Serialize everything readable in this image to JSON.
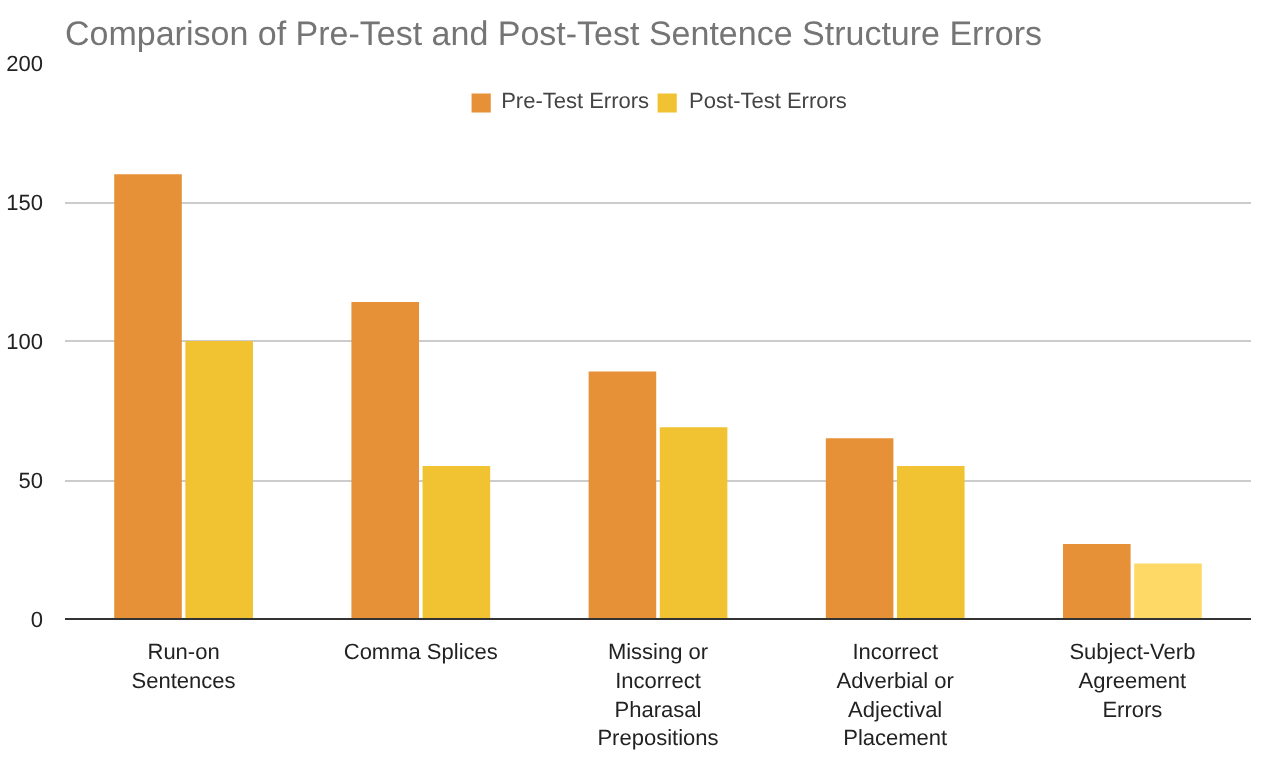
{
  "chart_data": {
    "type": "bar",
    "title": "Comparison of Pre-Test and Post-Test Sentence Structure Errors",
    "categories": [
      "Run-on Sentences",
      "Comma Splices",
      "Missing or Incorrect Pharasal Prepositions",
      "Incorrect Adverbial or Adjectival Placement",
      "Subject-Verb Agreement Errors"
    ],
    "series": [
      {
        "name": "Pre-Test Errors",
        "color": "#e69138",
        "values": [
          160,
          114,
          89,
          65,
          27
        ]
      },
      {
        "name": "Post-Test Errors",
        "colors": [
          "#f1c232",
          "#f1c232",
          "#f1c232",
          "#f1c232",
          "#ffd966"
        ],
        "values": [
          100,
          55,
          69,
          55,
          20
        ]
      }
    ],
    "ylim": [
      0,
      200
    ],
    "yticks": [
      0,
      50,
      100,
      150,
      200
    ],
    "grid": "y",
    "legend": "top"
  }
}
